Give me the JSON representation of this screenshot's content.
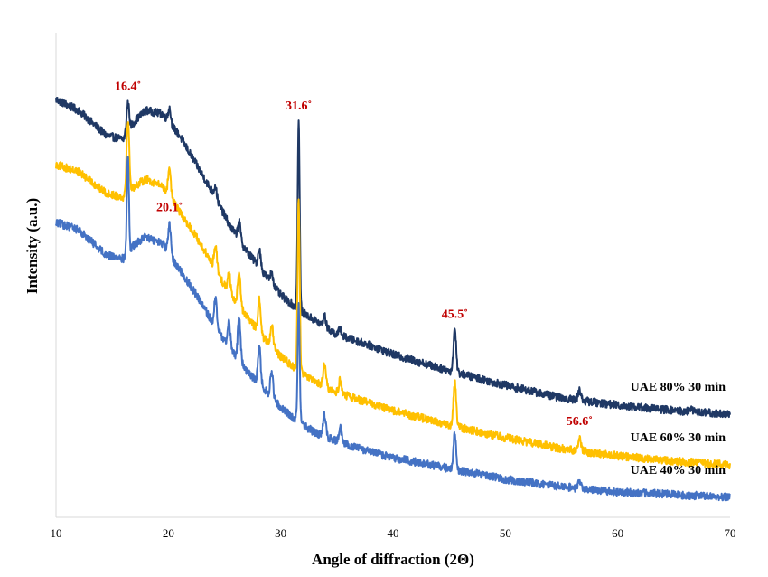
{
  "chart_data": {
    "type": "line",
    "title": "",
    "xlabel": "Angle of diffraction (2Θ)",
    "ylabel": "Intensity (a.u.)",
    "xlim": [
      10,
      70
    ],
    "xticks": [
      "10",
      "20",
      "30",
      "40",
      "50",
      "60",
      "70"
    ],
    "yticks_shown": false,
    "grid": false,
    "series": [
      {
        "name": "UAE 80% 30 min",
        "color": "#1f3864",
        "baseline": [
          [
            10,
            1.1
          ],
          [
            12,
            1.07
          ],
          [
            14.5,
            1.0
          ],
          [
            16,
            0.99
          ],
          [
            17,
            1.04
          ],
          [
            18,
            1.07
          ],
          [
            19.5,
            1.06
          ],
          [
            21,
            1.0
          ],
          [
            22.5,
            0.92
          ],
          [
            24,
            0.84
          ],
          [
            25.5,
            0.75
          ],
          [
            27,
            0.68
          ],
          [
            28.5,
            0.62
          ],
          [
            30,
            0.56
          ],
          [
            31.5,
            0.52
          ],
          [
            33,
            0.49
          ],
          [
            35,
            0.45
          ],
          [
            38,
            0.42
          ],
          [
            40,
            0.395
          ],
          [
            45,
            0.35
          ],
          [
            50,
            0.31
          ],
          [
            55,
            0.275
          ],
          [
            60,
            0.255
          ],
          [
            65,
            0.24
          ],
          [
            70,
            0.23
          ]
        ],
        "peaks": [
          [
            16.4,
            0.08
          ],
          [
            20.1,
            0.04
          ],
          [
            24.2,
            0.03
          ],
          [
            26.3,
            0.05
          ],
          [
            28.1,
            0.05
          ],
          [
            29.2,
            0.03
          ],
          [
            31.6,
            0.52
          ],
          [
            33.9,
            0.03
          ],
          [
            35.3,
            0.02
          ],
          [
            45.5,
            0.12
          ],
          [
            56.6,
            0.03
          ],
          [
            66.5,
            0.01
          ]
        ]
      },
      {
        "name": "UAE 60% 30 min",
        "color": "#ffc000",
        "baseline": [
          [
            10,
            0.92
          ],
          [
            12,
            0.9
          ],
          [
            14.5,
            0.84
          ],
          [
            16,
            0.83
          ],
          [
            17,
            0.86
          ],
          [
            18,
            0.88
          ],
          [
            19.5,
            0.86
          ],
          [
            21,
            0.79
          ],
          [
            22.5,
            0.72
          ],
          [
            24,
            0.64
          ],
          [
            25.5,
            0.56
          ],
          [
            27,
            0.5
          ],
          [
            28.5,
            0.44
          ],
          [
            30,
            0.39
          ],
          [
            31.5,
            0.35
          ],
          [
            33,
            0.32
          ],
          [
            35,
            0.29
          ],
          [
            38,
            0.26
          ],
          [
            40,
            0.24
          ],
          [
            45,
            0.2
          ],
          [
            50,
            0.165
          ],
          [
            55,
            0.135
          ],
          [
            60,
            0.115
          ],
          [
            65,
            0.1
          ],
          [
            70,
            0.09
          ]
        ],
        "peaks": [
          [
            16.4,
            0.2
          ],
          [
            20.1,
            0.08
          ],
          [
            24.2,
            0.07
          ],
          [
            25.4,
            0.06
          ],
          [
            26.3,
            0.1
          ],
          [
            28.1,
            0.09
          ],
          [
            29.2,
            0.06
          ],
          [
            31.6,
            0.48
          ],
          [
            33.9,
            0.06
          ],
          [
            35.3,
            0.04
          ],
          [
            45.5,
            0.12
          ],
          [
            56.6,
            0.04
          ]
        ]
      },
      {
        "name": "UAE 40% 30 min",
        "color": "#4472c4",
        "baseline": [
          [
            10,
            0.76
          ],
          [
            12,
            0.74
          ],
          [
            14.5,
            0.67
          ],
          [
            16,
            0.66
          ],
          [
            17,
            0.7
          ],
          [
            18,
            0.72
          ],
          [
            19.5,
            0.7
          ],
          [
            21,
            0.63
          ],
          [
            22.5,
            0.56
          ],
          [
            24,
            0.48
          ],
          [
            25.5,
            0.41
          ],
          [
            27,
            0.35
          ],
          [
            28.5,
            0.3
          ],
          [
            30,
            0.25
          ],
          [
            31.5,
            0.21
          ],
          [
            33,
            0.18
          ],
          [
            35,
            0.155
          ],
          [
            38,
            0.125
          ],
          [
            40,
            0.11
          ],
          [
            45,
            0.08
          ],
          [
            50,
            0.05
          ],
          [
            55,
            0.03
          ],
          [
            60,
            0.015
          ],
          [
            65,
            0.008
          ],
          [
            70,
            0.0
          ]
        ],
        "peaks": [
          [
            16.4,
            0.27
          ],
          [
            20.1,
            0.08
          ],
          [
            24.2,
            0.08
          ],
          [
            25.4,
            0.07
          ],
          [
            26.3,
            0.12
          ],
          [
            28.1,
            0.1
          ],
          [
            29.2,
            0.07
          ],
          [
            31.6,
            0.32
          ],
          [
            33.9,
            0.06
          ],
          [
            35.3,
            0.04
          ],
          [
            45.5,
            0.1
          ],
          [
            56.6,
            0.02
          ]
        ]
      }
    ],
    "annotations": [
      {
        "text": "16.4˚",
        "x": 16.4,
        "series": "UAE 80% 30 min"
      },
      {
        "text": "20.1˚",
        "x": 20.1,
        "series": "UAE 40% 30 min"
      },
      {
        "text": "31.6˚",
        "x": 31.6,
        "series": "UAE 80% 30 min"
      },
      {
        "text": "45.5˚",
        "x": 45.5,
        "series": "UAE 80% 30 min"
      },
      {
        "text": "56.6˚",
        "x": 56.6,
        "series": "UAE 60% 30 min"
      }
    ]
  }
}
